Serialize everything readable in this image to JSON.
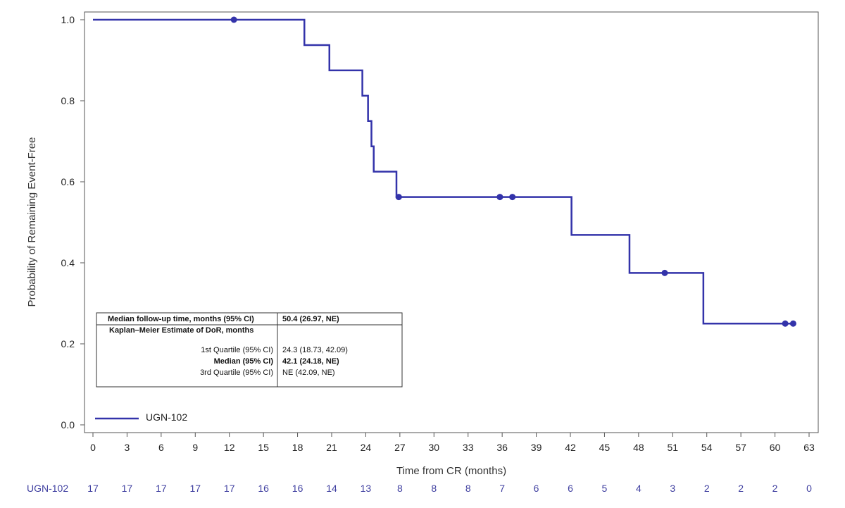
{
  "chart_data": {
    "type": "line",
    "xlabel": "Time from CR (months)",
    "ylabel": "Probability of Remaining Event-Free",
    "xlim": [
      0,
      63
    ],
    "ylim": [
      0,
      1
    ],
    "xticks": [
      0,
      3,
      6,
      9,
      12,
      15,
      18,
      21,
      24,
      27,
      30,
      33,
      36,
      39,
      42,
      45,
      48,
      51,
      54,
      57,
      60,
      63
    ],
    "yticks": [
      "0.0",
      "0.2",
      "0.4",
      "0.6",
      "0.8",
      "1.0"
    ],
    "grid": false,
    "legend": {
      "position": "bottom-left",
      "entries": [
        "UGN-102"
      ]
    },
    "series": [
      {
        "name": "UGN-102",
        "color": "#3333aa",
        "step": [
          {
            "x": 0,
            "y": 1.0
          },
          {
            "x": 18.6,
            "y": 0.9375
          },
          {
            "x": 20.8,
            "y": 0.875
          },
          {
            "x": 23.7,
            "y": 0.8125
          },
          {
            "x": 24.2,
            "y": 0.75
          },
          {
            "x": 24.5,
            "y": 0.6875
          },
          {
            "x": 24.7,
            "y": 0.625
          },
          {
            "x": 26.7,
            "y": 0.5625
          },
          {
            "x": 42.1,
            "y": 0.469
          },
          {
            "x": 47.2,
            "y": 0.375
          },
          {
            "x": 53.7,
            "y": 0.25
          },
          {
            "x": 61.8,
            "y": 0.25
          }
        ],
        "censored": [
          {
            "x": 12.4,
            "y": 1.0
          },
          {
            "x": 26.9,
            "y": 0.5625
          },
          {
            "x": 35.8,
            "y": 0.5625
          },
          {
            "x": 36.9,
            "y": 0.5625
          },
          {
            "x": 50.3,
            "y": 0.375
          },
          {
            "x": 60.9,
            "y": 0.25
          },
          {
            "x": 61.6,
            "y": 0.25
          }
        ]
      }
    ],
    "risk_table": {
      "label": "UGN-102",
      "times": [
        0,
        3,
        6,
        9,
        12,
        15,
        18,
        21,
        24,
        27,
        30,
        33,
        36,
        39,
        42,
        45,
        48,
        51,
        54,
        57,
        60,
        63
      ],
      "counts": [
        "17",
        "17",
        "17",
        "17",
        "17",
        "16",
        "16",
        "14",
        "13",
        "8",
        "8",
        "8",
        "7",
        "6",
        "6",
        "5",
        "4",
        "3",
        "2",
        "2",
        "2",
        "0"
      ]
    },
    "annotation_table": {
      "header_left": "Median follow-up time, months (95% CI)",
      "header_right": "50.4 (26.97, NE)",
      "section_title": "Kaplan–Meier Estimate of DoR, months",
      "rows": [
        {
          "label": "1st Quartile (95% CI)",
          "value": "24.3 (18.73, 42.09)",
          "bold": false
        },
        {
          "label": "Median (95% CI)",
          "value": "42.1 (24.18, NE)",
          "bold": true
        },
        {
          "label": "3rd Quartile (95% CI)",
          "value": "NE (42.09, NE)",
          "bold": false
        }
      ]
    }
  }
}
